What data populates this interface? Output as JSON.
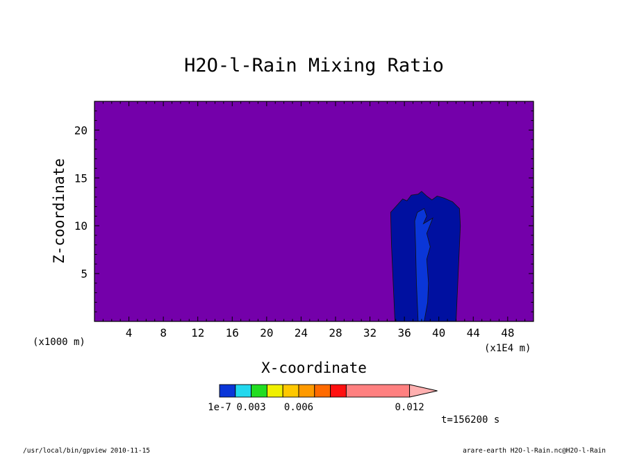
{
  "chart_data": {
    "type": "heatmap",
    "title": "H2O-l-Rain Mixing Ratio",
    "xlabel": "X-coordinate",
    "ylabel": "Z-coordinate",
    "x_unit": "(x1E4 m)",
    "y_unit": "(x1000 m)",
    "xlim": [
      0,
      51
    ],
    "ylim": [
      0,
      23
    ],
    "x_ticks": [
      4,
      8,
      12,
      16,
      20,
      24,
      28,
      32,
      36,
      40,
      44,
      48
    ],
    "y_ticks": [
      5,
      10,
      15,
      20
    ],
    "background_color": "#7400aa",
    "contours": [
      {
        "level": "1e-7",
        "color": "#0010a0",
        "points": [
          [
            34.9,
            0
          ],
          [
            34.7,
            4
          ],
          [
            34.5,
            8
          ],
          [
            34.4,
            11.4
          ],
          [
            35.2,
            12.2
          ],
          [
            35.8,
            12.8
          ],
          [
            36.3,
            12.6
          ],
          [
            36.8,
            13.2
          ],
          [
            37.6,
            13.3
          ],
          [
            38,
            13.6
          ],
          [
            38.6,
            13.1
          ],
          [
            39.2,
            12.7
          ],
          [
            39.8,
            13.1
          ],
          [
            40.6,
            12.9
          ],
          [
            41.6,
            12.5
          ],
          [
            42.4,
            11.8
          ],
          [
            42.5,
            10
          ],
          [
            42.3,
            6
          ],
          [
            42.0,
            0
          ]
        ]
      },
      {
        "level": "1e-7",
        "color": "#0a36d8",
        "points": [
          [
            37.6,
            0
          ],
          [
            37.4,
            4
          ],
          [
            37.3,
            8
          ],
          [
            37.2,
            10.5
          ],
          [
            37.5,
            11.4
          ],
          [
            38.3,
            11.8
          ],
          [
            38.6,
            11.0
          ],
          [
            38.2,
            10.2
          ],
          [
            39.3,
            10.8
          ],
          [
            38.6,
            9.2
          ],
          [
            39.0,
            7.8
          ],
          [
            38.6,
            6.5
          ],
          [
            38.8,
            4
          ],
          [
            38.7,
            2
          ],
          [
            38.3,
            0
          ]
        ]
      }
    ],
    "colorbar": {
      "colors": [
        "#0a36d8",
        "#22d8ee",
        "#22dd22",
        "#f0f000",
        "#ffc800",
        "#ff9a00",
        "#ff6a00",
        "#ff1010",
        "#ff8080"
      ],
      "extend_color": "#ffb0b0",
      "labels": [
        "1e-7",
        "0.003",
        "0.006",
        "0.012"
      ]
    },
    "time_label": "t=156200 s"
  },
  "footer": {
    "left": "/usr/local/bin/gpview  2010-11-15",
    "right": "arare-earth_H2O-l-Rain.nc@H2O-l-Rain"
  }
}
